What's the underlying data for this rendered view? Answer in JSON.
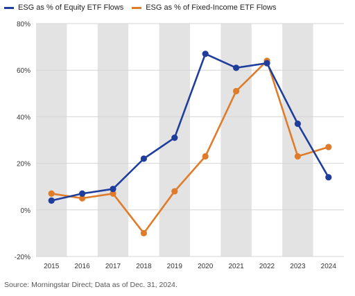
{
  "legend": [
    {
      "label": "ESG as % of Equity ETF Flows",
      "color": "#1f3e9c"
    },
    {
      "label": "ESG as % of Fixed-Income ETF Flows",
      "color": "#e07b2a"
    }
  ],
  "source": "Source: Morningstar Direct; Data as of Dec. 31, 2024.",
  "chart_data": {
    "type": "line",
    "title": "",
    "xlabel": "",
    "ylabel": "",
    "categories": [
      "2015",
      "2016",
      "2017",
      "2018",
      "2019",
      "2020",
      "2021",
      "2022",
      "2023",
      "2024"
    ],
    "ylim": [
      -20,
      80
    ],
    "yticks": [
      80,
      60,
      40,
      20,
      0,
      -20
    ],
    "ytick_labels": [
      "80%",
      "60%",
      "40%",
      "20%",
      "0%",
      "-20%"
    ],
    "grid": "alternating vertical bands",
    "legend_position": "top-left",
    "series": [
      {
        "name": "ESG as % of Equity ETF Flows",
        "color": "#1f3e9c",
        "values": [
          4,
          7,
          9,
          22,
          31,
          67,
          61,
          63,
          37,
          14
        ]
      },
      {
        "name": "ESG as % of Fixed-Income ETF Flows",
        "color": "#e07b2a",
        "values": [
          7,
          5,
          7,
          -10,
          8,
          23,
          51,
          64,
          23,
          27
        ]
      }
    ]
  }
}
